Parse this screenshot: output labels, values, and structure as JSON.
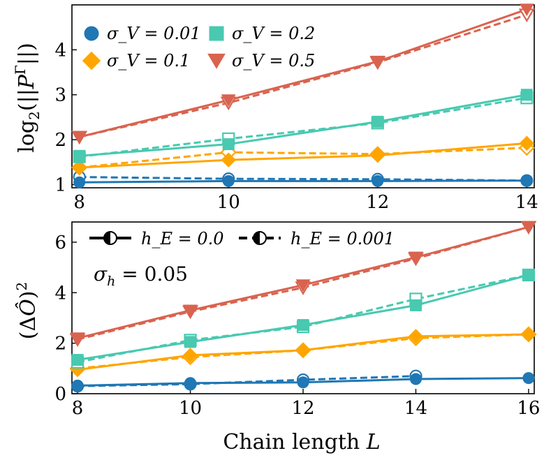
{
  "chart_data": [
    {
      "type": "line",
      "panel": "top",
      "ylabel": "log₂(||P^Γ||)",
      "xlabel": "",
      "x_ticks": [
        8,
        10,
        12,
        14
      ],
      "y_ticks": [
        1,
        2,
        3,
        4
      ],
      "xlim": [
        7.9,
        14.1
      ],
      "ylim": [
        0.93,
        5.0
      ],
      "legend_position": "top-left",
      "series": [
        {
          "name": "σ_V = 0.01",
          "color": "#1f77b4",
          "marker": "circle",
          "h0": [
            [
              8,
              1.05
            ],
            [
              10,
              1.08
            ],
            [
              12,
              1.08
            ],
            [
              14,
              1.09
            ]
          ],
          "h1": [
            [
              8,
              1.17
            ],
            [
              10,
              1.13
            ],
            [
              12,
              1.12
            ],
            [
              14,
              1.09
            ]
          ]
        },
        {
          "name": "σ_V = 0.1",
          "color": "#ffa500",
          "marker": "diamond",
          "h0": [
            [
              8,
              1.38
            ],
            [
              10,
              1.55
            ],
            [
              12,
              1.65
            ],
            [
              14,
              1.92
            ]
          ],
          "h1": [
            [
              8,
              1.38
            ],
            [
              10,
              1.72
            ],
            [
              12,
              1.68
            ],
            [
              14,
              1.82
            ]
          ]
        },
        {
          "name": "σ_V = 0.2",
          "color": "#48c9b0",
          "marker": "square",
          "h0": [
            [
              8,
              1.64
            ],
            [
              10,
              1.9
            ],
            [
              12,
              2.4
            ],
            [
              14,
              3.0
            ]
          ],
          "h1": [
            [
              8,
              1.62
            ],
            [
              10,
              2.02
            ],
            [
              12,
              2.37
            ],
            [
              14,
              2.93
            ]
          ]
        },
        {
          "name": "σ_V = 0.5",
          "color": "#d9634f",
          "marker": "triangle-down",
          "h0": [
            [
              8,
              2.06
            ],
            [
              10,
              2.88
            ],
            [
              12,
              3.74
            ],
            [
              14,
              4.9
            ]
          ],
          "h1": [
            [
              8,
              2.06
            ],
            [
              10,
              2.82
            ],
            [
              12,
              3.72
            ],
            [
              14,
              4.78
            ]
          ]
        }
      ]
    },
    {
      "type": "line",
      "panel": "bottom",
      "ylabel": "(ΔÔ)²",
      "xlabel": "Chain length L",
      "x_ticks": [
        8,
        10,
        12,
        14,
        16
      ],
      "y_ticks": [
        0,
        2,
        4,
        6
      ],
      "xlim": [
        7.9,
        16.1
      ],
      "ylim": [
        0,
        6.8
      ],
      "legend_position": "top-left",
      "annotation": "σ_h = 0.05",
      "linestyle_legend": [
        {
          "label": "h_E = 0.0",
          "style": "solid"
        },
        {
          "label": "h_E = 0.001",
          "style": "dashed"
        }
      ],
      "series": [
        {
          "color": "#1f77b4",
          "marker": "circle",
          "h0": [
            [
              8,
              0.32
            ],
            [
              10,
              0.42
            ],
            [
              12,
              0.45
            ],
            [
              14,
              0.58
            ],
            [
              16,
              0.62
            ]
          ],
          "h1": [
            [
              8,
              0.3
            ],
            [
              10,
              0.38
            ],
            [
              12,
              0.55
            ],
            [
              14,
              0.7
            ]
          ]
        },
        {
          "color": "#ffa500",
          "marker": "diamond",
          "h0": [
            [
              8,
              0.95
            ],
            [
              10,
              1.52
            ],
            [
              12,
              1.72
            ],
            [
              14,
              2.27
            ],
            [
              16,
              2.35
            ]
          ],
          "h1": [
            [
              8,
              1.0
            ],
            [
              10,
              1.45
            ],
            [
              12,
              1.72
            ],
            [
              14,
              2.2
            ],
            [
              16,
              2.35
            ]
          ]
        },
        {
          "color": "#48c9b0",
          "marker": "square",
          "h0": [
            [
              8,
              1.34
            ],
            [
              10,
              2.05
            ],
            [
              12,
              2.72
            ],
            [
              14,
              3.5
            ],
            [
              16,
              4.7
            ]
          ],
          "h1": [
            [
              8,
              1.25
            ],
            [
              10,
              2.12
            ],
            [
              12,
              2.65
            ],
            [
              14,
              3.75
            ],
            [
              16,
              4.7
            ]
          ]
        },
        {
          "color": "#d9634f",
          "marker": "triangle-down",
          "h0": [
            [
              8,
              2.2
            ],
            [
              10,
              3.3
            ],
            [
              12,
              4.3
            ],
            [
              14,
              5.4
            ],
            [
              16,
              6.6
            ]
          ],
          "h1": [
            [
              8,
              2.15
            ],
            [
              10,
              3.25
            ],
            [
              12,
              4.2
            ],
            [
              14,
              5.35
            ],
            [
              16,
              6.6
            ]
          ]
        }
      ]
    }
  ]
}
